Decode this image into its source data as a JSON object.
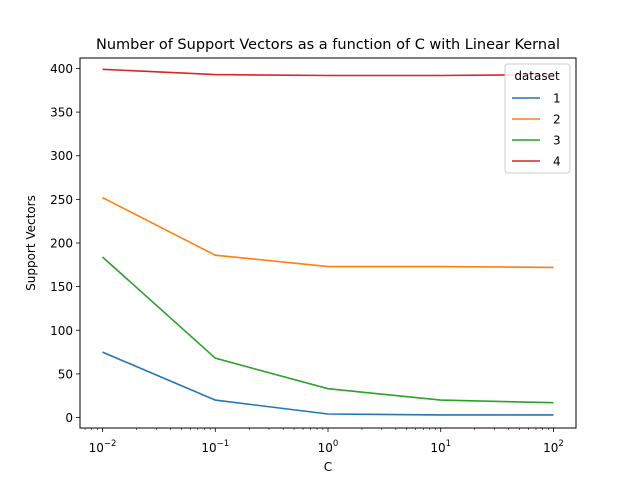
{
  "chart_data": {
    "type": "line",
    "title": "Number of Support Vectors as a function of C with Linear Kernal",
    "xlabel": "C",
    "ylabel": "Support Vectors",
    "x_scale": "log",
    "x": [
      0.01,
      0.1,
      1,
      10,
      100
    ],
    "xtick_labels": [
      {
        "base": "10",
        "exp": "−2"
      },
      {
        "base": "10",
        "exp": "−1"
      },
      {
        "base": "10",
        "exp": "0"
      },
      {
        "base": "10",
        "exp": "1"
      },
      {
        "base": "10",
        "exp": "2"
      }
    ],
    "yticks": [
      0,
      50,
      100,
      150,
      200,
      250,
      300,
      350,
      400
    ],
    "ylim": [
      -12,
      412
    ],
    "grid": false,
    "legend": {
      "title": "dataset",
      "placement": "top-right"
    },
    "series": [
      {
        "name": "1",
        "color": "#1f77b4",
        "values": [
          75,
          20,
          4,
          3,
          3
        ]
      },
      {
        "name": "2",
        "color": "#ff7f0e",
        "values": [
          252,
          186,
          173,
          173,
          172
        ]
      },
      {
        "name": "3",
        "color": "#2ca02c",
        "values": [
          184,
          68,
          33,
          20,
          17
        ]
      },
      {
        "name": "4",
        "color": "#d62728",
        "values": [
          399,
          393,
          392,
          392,
          393
        ]
      }
    ]
  }
}
